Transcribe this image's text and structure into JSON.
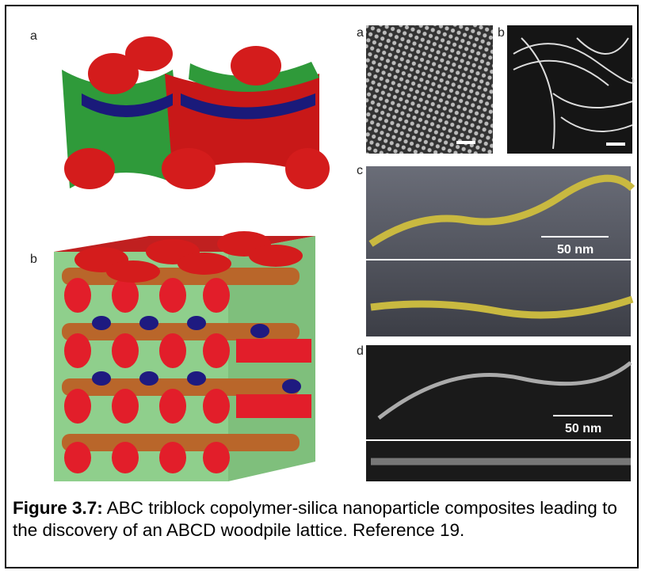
{
  "left_panels": [
    {
      "label": "a"
    },
    {
      "label": "b"
    }
  ],
  "right_panels": [
    {
      "label": "a"
    },
    {
      "label": "b"
    },
    {
      "label": "c",
      "scale_bar": "50 nm"
    },
    {
      "label": "d",
      "scale_bar": "50 nm"
    }
  ],
  "caption": {
    "label": "Figure 3.7:",
    "text": "ABC triblock copolymer-silica nanoparticle composites leading to the discovery of an ABCD woodpile lattice. Reference 19."
  }
}
